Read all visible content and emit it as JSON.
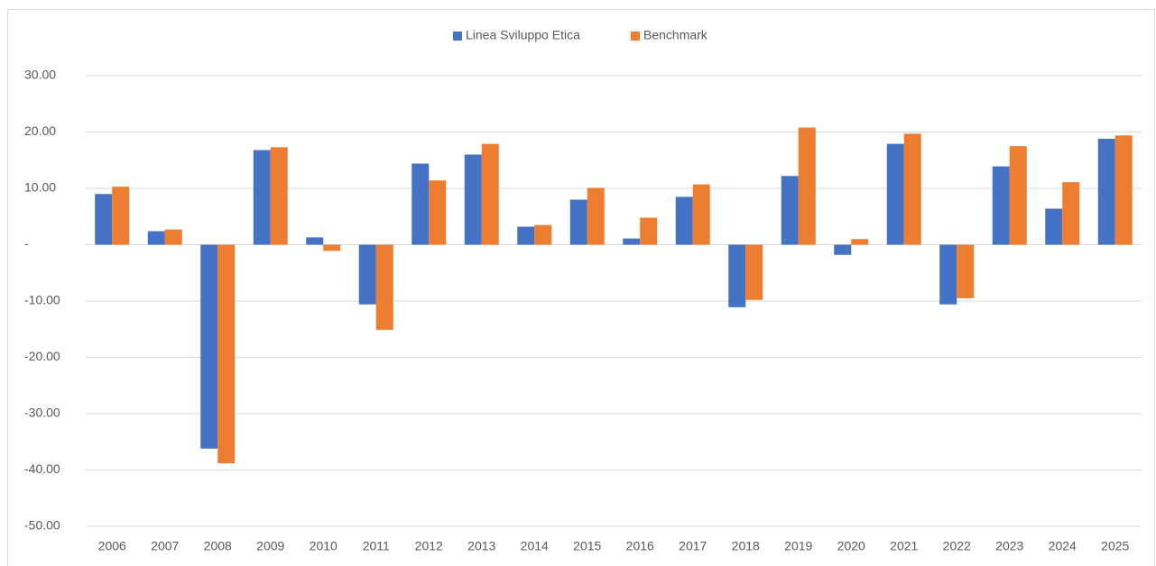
{
  "chart_data": {
    "type": "bar",
    "categories": [
      "2006",
      "2007",
      "2008",
      "2009",
      "2010",
      "2011",
      "2012",
      "2013",
      "2014",
      "2015",
      "2016",
      "2017",
      "2018",
      "2019",
      "2020",
      "2021",
      "2022",
      "2023",
      "2024",
      "2025"
    ],
    "series": [
      {
        "name": "Linea Sviluppo Etica",
        "color": "#4472c4",
        "values": [
          9.0,
          2.4,
          -36.2,
          16.8,
          1.3,
          -10.6,
          14.4,
          16.0,
          3.2,
          8.0,
          1.1,
          8.5,
          -11.1,
          12.2,
          -1.8,
          17.9,
          -10.6,
          13.9,
          6.4,
          18.8
        ]
      },
      {
        "name": "Benchmark",
        "color": "#ed7d31",
        "values": [
          10.3,
          2.7,
          -38.8,
          17.3,
          -1.1,
          -15.1,
          11.4,
          17.9,
          3.5,
          10.1,
          4.8,
          10.7,
          -9.8,
          20.8,
          1.0,
          19.7,
          -9.5,
          17.5,
          11.1,
          19.4
        ]
      }
    ],
    "ylim": [
      -50,
      30
    ],
    "yticks": [
      {
        "value": -50,
        "label": "-50.00"
      },
      {
        "value": -40,
        "label": "-40.00"
      },
      {
        "value": -30,
        "label": "-30.00"
      },
      {
        "value": -20,
        "label": "-20.00"
      },
      {
        "value": -10,
        "label": "-10.00"
      },
      {
        "value": 0,
        "label": "-"
      },
      {
        "value": 10,
        "label": "10.00"
      },
      {
        "value": 20,
        "label": "20.00"
      },
      {
        "value": 30,
        "label": "30.00"
      }
    ],
    "grid": true,
    "legend": "top"
  }
}
